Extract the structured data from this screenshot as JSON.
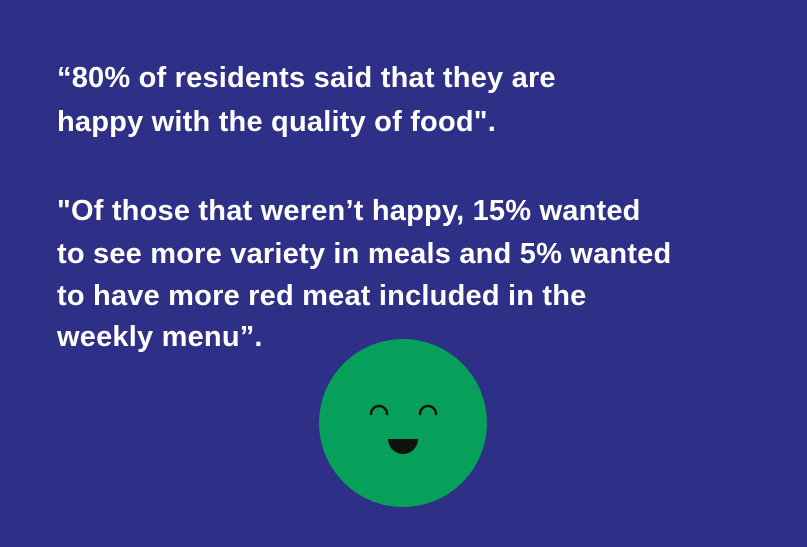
{
  "quotes": [
    {
      "lines": [
        "“80% of residents said that they are",
        "happy with the quality of food\"."
      ]
    },
    {
      "lines": [
        "\"Of those that weren’t happy, 15% wanted",
        "to see more variety in meals and 5% wanted",
        "to have more red meat included in the",
        "weekly menu”."
      ]
    }
  ]
}
